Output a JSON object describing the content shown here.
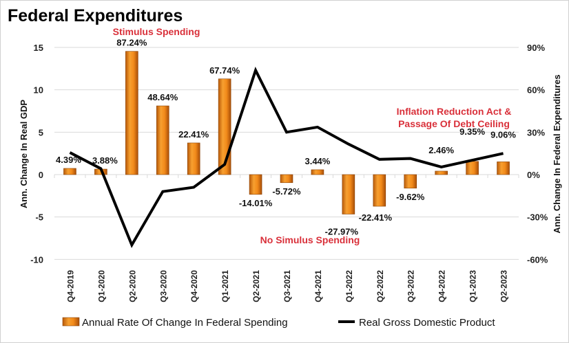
{
  "chart_data": {
    "type": "bar+line",
    "title": "Federal Expenditures",
    "categories": [
      "Q4-2019",
      "Q1-2020",
      "Q2-2020",
      "Q3-2020",
      "Q4-2020",
      "Q1-2021",
      "Q2-2021",
      "Q3-2021",
      "Q4-2021",
      "Q1-2022",
      "Q2-2022",
      "Q3-2022",
      "Q4-2022",
      "Q1-2023",
      "Q2-2023"
    ],
    "series": [
      {
        "name": "Annual Rate Of Change In Federal Spending",
        "type": "bar",
        "axis": "right",
        "values": [
          4.39,
          3.88,
          87.24,
          48.64,
          22.41,
          67.74,
          -14.01,
          -5.72,
          3.44,
          -27.97,
          -22.41,
          -9.62,
          2.46,
          9.35,
          9.06
        ],
        "labels": [
          "4.39%",
          "3.88%",
          "87.24%",
          "48.64%",
          "22.41%",
          "67.74%",
          "-14.01%",
          "-5.72%",
          "3.44%",
          "-27.97%",
          "-22.41%",
          "-9.62%",
          "2.46%",
          "9.35%",
          "9.06%"
        ],
        "color": "#F08A1C"
      },
      {
        "name": "Real Gross Domestic Product",
        "type": "line",
        "axis": "left",
        "values": [
          2.6,
          0.7,
          -8.3,
          -2.0,
          -1.5,
          1.2,
          12.3,
          5.0,
          5.6,
          3.6,
          1.8,
          1.9,
          0.9,
          1.7,
          2.5
        ],
        "color": "#000000"
      }
    ],
    "ylabel_left": "Ann. Change In Real GDP",
    "ylabel_right": "Ann. Change In Federal Expenditures",
    "ylim_left": [
      -10,
      15
    ],
    "ylim_right": [
      -60,
      90
    ],
    "yticks_left": [
      "15",
      "10",
      "5",
      "0",
      "-5",
      "-10"
    ],
    "yticks_right": [
      "90%",
      "60%",
      "30%",
      "0%",
      "-30%",
      "-60%"
    ],
    "grid": true,
    "legend": "bottom",
    "annotations": [
      "Stimulus Spending",
      "No Simulus Spending",
      "Inflation Reduction Act &",
      "Passage Of Debt Ceiling"
    ],
    "annotation_color": "#D9303A"
  }
}
